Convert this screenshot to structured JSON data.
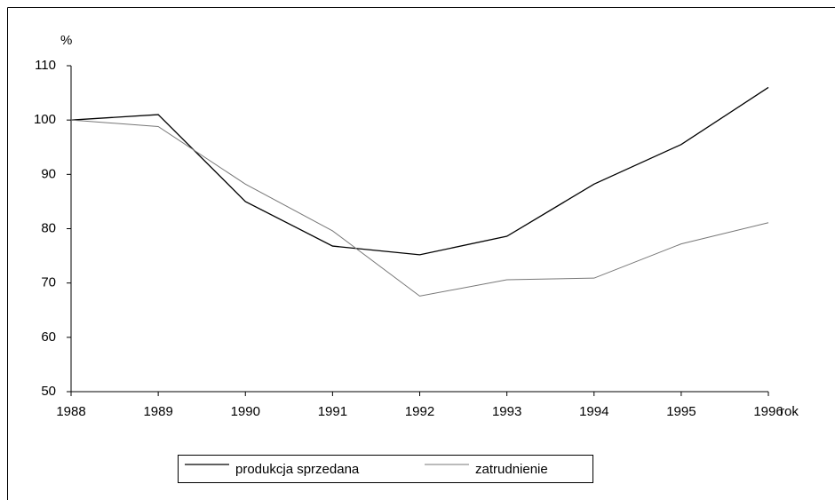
{
  "chart_data": {
    "type": "line",
    "y_label": "%",
    "x_label": "rok",
    "x": [
      1988,
      1989,
      1990,
      1991,
      1992,
      1993,
      1994,
      1995,
      1996
    ],
    "series": [
      {
        "name": "produkcja sprzedana",
        "color": "#000000",
        "values": [
          100,
          101,
          85,
          76.8,
          75.2,
          78.6,
          88.2,
          95.5,
          106
        ]
      },
      {
        "name": "zatrudnienie",
        "color": "#777777",
        "values": [
          100,
          98.8,
          88.2,
          79.6,
          67.6,
          70.6,
          70.9,
          77.2,
          81.1
        ]
      }
    ],
    "xlim": [
      1988,
      1996
    ],
    "xticks": [
      1988,
      1989,
      1990,
      1991,
      1992,
      1993,
      1994,
      1995,
      1996
    ],
    "ylim": [
      50,
      110
    ],
    "yticks": [
      50,
      60,
      70,
      80,
      90,
      100,
      110
    ],
    "grid": false,
    "legend": "bottom"
  }
}
